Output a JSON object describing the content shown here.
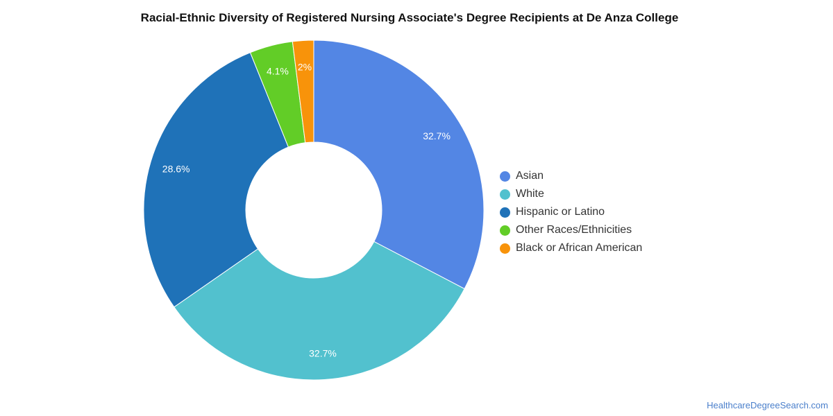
{
  "chart_data": {
    "type": "pie",
    "title": "Racial-Ethnic Diversity of Registered Nursing Associate's Degree Recipients at De Anza College",
    "categories": [
      "Asian",
      "White",
      "Hispanic or Latino",
      "Other Races/Ethnicities",
      "Black or African American"
    ],
    "values": [
      32.7,
      32.7,
      28.6,
      4.1,
      2.0
    ],
    "data_labels": [
      "32.7%",
      "32.7%",
      "28.6%",
      "4.1%",
      "2%"
    ],
    "colors": [
      "#5386e4",
      "#52c1ce",
      "#1f72b8",
      "#62cd27",
      "#f8930a"
    ],
    "legend_position": "right",
    "donut": true
  },
  "source": "HealthcareDegreeSearch.com"
}
